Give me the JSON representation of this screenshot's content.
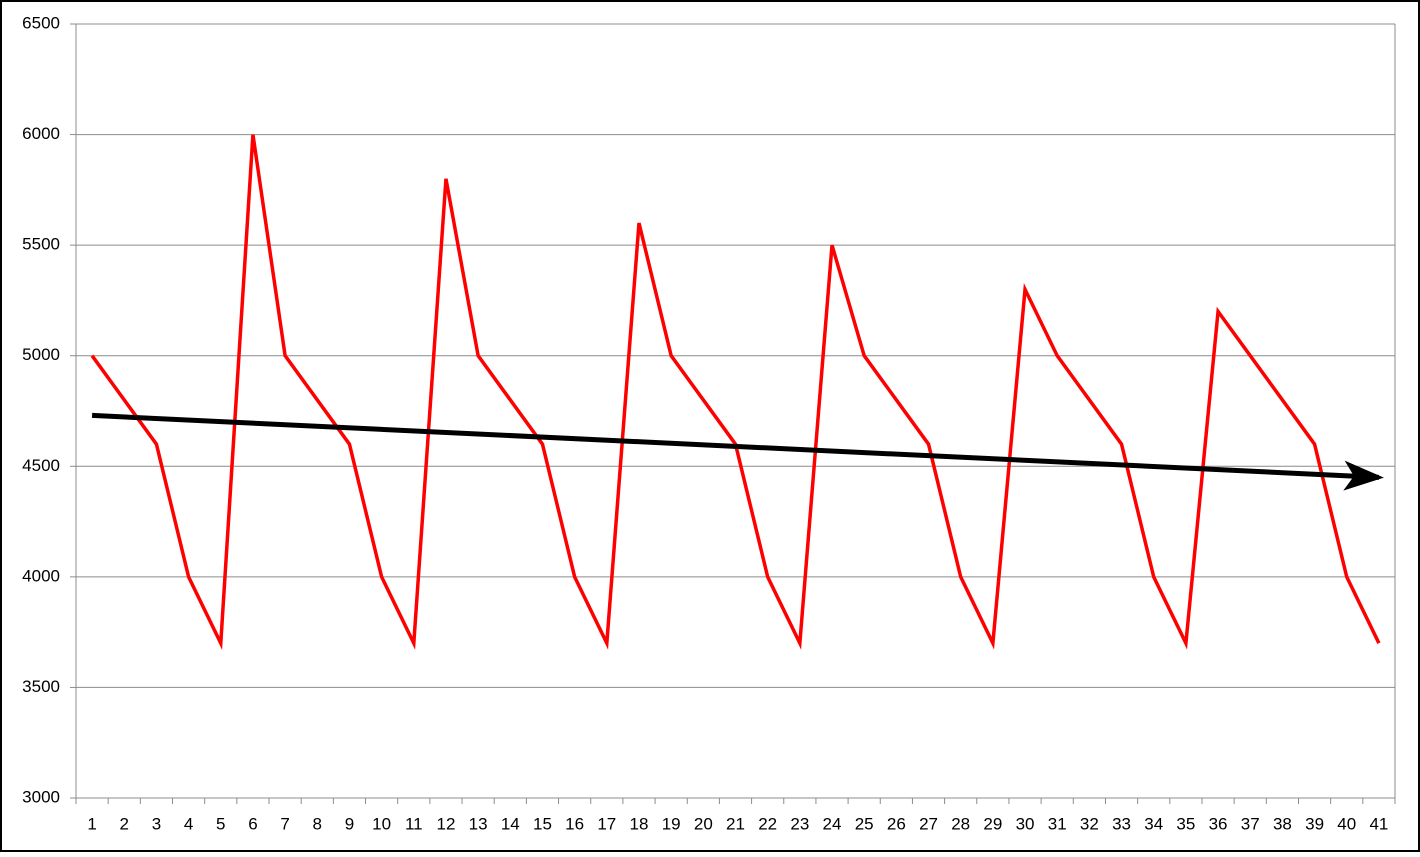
{
  "chart_data": {
    "type": "line",
    "categories": [
      1,
      2,
      3,
      4,
      5,
      6,
      7,
      8,
      9,
      10,
      11,
      12,
      13,
      14,
      15,
      16,
      17,
      18,
      19,
      20,
      21,
      22,
      23,
      24,
      25,
      26,
      27,
      28,
      29,
      30,
      31,
      32,
      33,
      34,
      35,
      36,
      37,
      38,
      39,
      40,
      41
    ],
    "series": [
      {
        "color": "#ff0000",
        "values": [
          5000,
          4800,
          4600,
          4000,
          3700,
          6000,
          5000,
          4800,
          4600,
          4000,
          3700,
          5800,
          5000,
          4800,
          4600,
          4000,
          3700,
          5600,
          5000,
          4800,
          4600,
          4000,
          3700,
          5500,
          5000,
          4800,
          4600,
          4000,
          3700,
          5300,
          5000,
          4800,
          4600,
          4000,
          3700,
          5200,
          5000,
          4800,
          4600,
          4000,
          3700
        ]
      }
    ],
    "trend": {
      "x": [
        1,
        41
      ],
      "values": [
        4730,
        4450
      ],
      "color": "#000000"
    },
    "ylim": [
      3000,
      6500
    ],
    "yticks": [
      3000,
      3500,
      4000,
      4500,
      5000,
      5500,
      6000,
      6500
    ],
    "grid": true
  }
}
